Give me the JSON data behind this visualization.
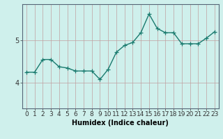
{
  "x": [
    0,
    1,
    2,
    3,
    4,
    5,
    6,
    7,
    8,
    9,
    10,
    11,
    12,
    13,
    14,
    15,
    16,
    17,
    18,
    19,
    20,
    21,
    22,
    23
  ],
  "y": [
    4.25,
    4.25,
    4.55,
    4.55,
    4.38,
    4.35,
    4.28,
    4.28,
    4.28,
    4.08,
    4.32,
    4.72,
    4.88,
    4.95,
    5.18,
    5.62,
    5.28,
    5.18,
    5.18,
    4.92,
    4.92,
    4.92,
    5.05,
    5.2
  ],
  "line_color": "#1a7a6e",
  "marker": "+",
  "marker_size": 4,
  "marker_edge_width": 0.9,
  "bg_color": "#cff0ec",
  "grid_color_v": "#c0a0a0",
  "grid_color_h": "#c0a0a0",
  "xlabel": "Humidex (Indice chaleur)",
  "xlabel_fontsize": 7,
  "ylabel_ticks": [
    4,
    5
  ],
  "ylim": [
    3.4,
    5.85
  ],
  "xlim": [
    -0.5,
    23.5
  ],
  "tick_fontsize": 6.5,
  "line_width": 1.0,
  "spine_color": "#556677"
}
